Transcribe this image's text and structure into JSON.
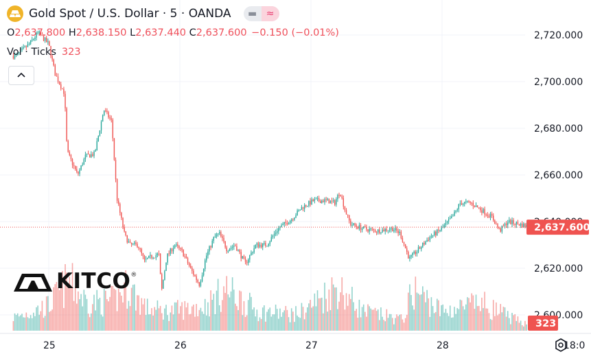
{
  "header": {
    "symbol_icon": "gold-bars-icon",
    "title": "Gold Spot / U.S. Dollar · 5 · OANDA",
    "pill_left_icon": "minus-icon",
    "pill_right_icon": "wave-icon"
  },
  "ohlc": {
    "open_label": "O",
    "open": "2,637.800",
    "high_label": "H",
    "high": "2,638.150",
    "low_label": "L",
    "low": "2,637.440",
    "close_label": "C",
    "close": "2,637.600",
    "change": "−0.150 (−0.01%)"
  },
  "volume": {
    "label": "Vol · Ticks",
    "value": "323"
  },
  "collapse_icon": "chevron-up-icon",
  "watermark": "KITCO",
  "price_axis": {
    "ticks": [
      2720,
      2700,
      2680,
      2660,
      2640,
      2620,
      2600
    ],
    "tick_labels": [
      "2,720.000",
      "2,700.000",
      "2,680.000",
      "2,660.000",
      "2,640.000",
      "2,620.000",
      "2,600.000"
    ],
    "current_price_label": "2,637.600",
    "current_volume_label": "323"
  },
  "time_axis": {
    "labels": [
      "25",
      "26",
      "27",
      "28",
      "18:0"
    ]
  },
  "settings_icon": "settings-icon",
  "colors": {
    "up": "#26a69a",
    "down": "#ef5350",
    "price_tag": "#ef5350",
    "grid": "#f0f3fa"
  },
  "chart_data": {
    "type": "candlestick",
    "title": "Gold Spot / U.S. Dollar · 5 · OANDA",
    "ylim": [
      2597,
      2731
    ],
    "y_ticks": [
      2600,
      2620,
      2640,
      2660,
      2680,
      2700,
      2720
    ],
    "x_ticks": [
      "25",
      "26",
      "27",
      "28",
      "18:0"
    ],
    "current_price": 2637.6,
    "price_path": [
      {
        "t": -0.25,
        "p": 2711
      },
      {
        "t": -0.15,
        "p": 2716
      },
      {
        "t": -0.08,
        "p": 2721
      },
      {
        "t": 0.0,
        "p": 2716
      },
      {
        "t": 0.05,
        "p": 2703
      },
      {
        "t": 0.12,
        "p": 2695
      },
      {
        "t": 0.14,
        "p": 2670
      },
      {
        "t": 0.18,
        "p": 2665
      },
      {
        "t": 0.22,
        "p": 2660
      },
      {
        "t": 0.28,
        "p": 2668
      },
      {
        "t": 0.35,
        "p": 2669
      },
      {
        "t": 0.42,
        "p": 2688
      },
      {
        "t": 0.48,
        "p": 2683
      },
      {
        "t": 0.52,
        "p": 2650
      },
      {
        "t": 0.58,
        "p": 2634
      },
      {
        "t": 0.62,
        "p": 2630
      },
      {
        "t": 0.68,
        "p": 2630
      },
      {
        "t": 0.73,
        "p": 2623
      },
      {
        "t": 0.78,
        "p": 2625
      },
      {
        "t": 0.84,
        "p": 2626
      },
      {
        "t": 0.86,
        "p": 2610
      },
      {
        "t": 0.9,
        "p": 2625
      },
      {
        "t": 0.96,
        "p": 2630
      },
      {
        "t": 1.02,
        "p": 2627
      },
      {
        "t": 1.08,
        "p": 2620
      },
      {
        "t": 1.15,
        "p": 2613
      },
      {
        "t": 1.2,
        "p": 2625
      },
      {
        "t": 1.26,
        "p": 2633
      },
      {
        "t": 1.3,
        "p": 2635
      },
      {
        "t": 1.36,
        "p": 2628
      },
      {
        "t": 1.42,
        "p": 2630
      },
      {
        "t": 1.5,
        "p": 2622
      },
      {
        "t": 1.58,
        "p": 2630
      },
      {
        "t": 1.66,
        "p": 2630
      },
      {
        "t": 1.75,
        "p": 2637
      },
      {
        "t": 1.85,
        "p": 2641
      },
      {
        "t": 1.93,
        "p": 2646
      },
      {
        "t": 2.02,
        "p": 2649
      },
      {
        "t": 2.12,
        "p": 2649
      },
      {
        "t": 2.18,
        "p": 2648
      },
      {
        "t": 2.22,
        "p": 2653
      },
      {
        "t": 2.26,
        "p": 2645
      },
      {
        "t": 2.3,
        "p": 2639
      },
      {
        "t": 2.4,
        "p": 2637
      },
      {
        "t": 2.5,
        "p": 2636
      },
      {
        "t": 2.62,
        "p": 2637
      },
      {
        "t": 2.68,
        "p": 2635
      },
      {
        "t": 2.75,
        "p": 2624
      },
      {
        "t": 2.82,
        "p": 2628
      },
      {
        "t": 2.9,
        "p": 2633
      },
      {
        "t": 3.0,
        "p": 2637
      },
      {
        "t": 3.08,
        "p": 2642
      },
      {
        "t": 3.14,
        "p": 2648
      },
      {
        "t": 3.22,
        "p": 2648
      },
      {
        "t": 3.3,
        "p": 2645
      },
      {
        "t": 3.38,
        "p": 2642
      },
      {
        "t": 3.44,
        "p": 2636
      },
      {
        "t": 3.5,
        "p": 2640
      },
      {
        "t": 3.58,
        "p": 2639
      },
      {
        "t": 3.65,
        "p": 2638
      }
    ],
    "volume_profile": [
      {
        "t": -0.25,
        "v": 0.25
      },
      {
        "t": 0.0,
        "v": 0.45
      },
      {
        "t": 0.15,
        "v": 0.9
      },
      {
        "t": 0.3,
        "v": 0.5
      },
      {
        "t": 0.5,
        "v": 0.55
      },
      {
        "t": 0.6,
        "v": 0.8
      },
      {
        "t": 0.75,
        "v": 0.4
      },
      {
        "t": 0.9,
        "v": 0.35
      },
      {
        "t": 1.2,
        "v": 0.45
      },
      {
        "t": 1.35,
        "v": 0.75
      },
      {
        "t": 1.6,
        "v": 0.35
      },
      {
        "t": 1.9,
        "v": 0.3
      },
      {
        "t": 2.2,
        "v": 0.8
      },
      {
        "t": 2.4,
        "v": 0.35
      },
      {
        "t": 2.7,
        "v": 0.2
      },
      {
        "t": 2.78,
        "v": 0.75
      },
      {
        "t": 3.0,
        "v": 0.35
      },
      {
        "t": 3.3,
        "v": 0.5
      },
      {
        "t": 3.6,
        "v": 0.15
      }
    ],
    "volume_axis_last": 323
  }
}
